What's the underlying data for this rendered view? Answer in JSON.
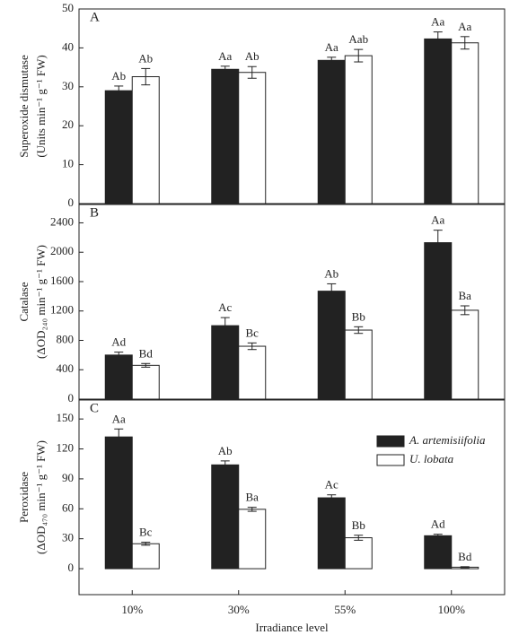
{
  "chart_data": [
    {
      "type": "bar",
      "panel": "A",
      "ylabel": [
        "Superoxide dismutase",
        "(Units min⁻¹ g⁻¹ FW)"
      ],
      "ylim": [
        0,
        50
      ],
      "yticks": [
        0,
        10,
        20,
        30,
        40,
        50
      ],
      "series": [
        {
          "color": "#222222",
          "values": [
            29,
            34.5,
            36.8,
            42.3
          ],
          "errors": [
            1.2,
            0.8,
            0.8,
            1.8
          ],
          "letters": [
            "Ab",
            "Aa",
            "Aa",
            "Aa"
          ]
        },
        {
          "color": "#ffffff",
          "values": [
            32.6,
            33.7,
            38,
            41.3
          ],
          "errors": [
            2.1,
            1.5,
            1.6,
            1.6
          ],
          "letters": [
            "Ab",
            "Ab",
            "Aab",
            "Aa"
          ]
        }
      ]
    },
    {
      "type": "bar",
      "panel": "B",
      "ylabel": [
        "Catalase",
        "(ΔOD₂₄₀ min⁻¹ g⁻¹ FW)"
      ],
      "ylim": [
        0,
        2650
      ],
      "yticks": [
        0,
        400,
        800,
        1200,
        1600,
        2000,
        2400
      ],
      "series": [
        {
          "color": "#222222",
          "values": [
            600,
            1000,
            1470,
            2130
          ],
          "errors": [
            40,
            110,
            100,
            170
          ],
          "letters": [
            "Ad",
            "Ac",
            "Ab",
            "Aa"
          ]
        },
        {
          "color": "#ffffff",
          "values": [
            460,
            720,
            940,
            1210
          ],
          "errors": [
            25,
            45,
            45,
            60
          ],
          "letters": [
            "Bd",
            "Bc",
            "Bb",
            "Ba"
          ]
        }
      ]
    },
    {
      "type": "bar",
      "panel": "C",
      "ylabel": [
        "Peroxidase",
        "(ΔOD₄₇₀ min⁻¹ g⁻¹ FW)"
      ],
      "xlabel": "Irradiance level",
      "categories": [
        "10%",
        "30%",
        "55%",
        "100%"
      ],
      "ylim": [
        -26,
        169
      ],
      "yticks": [
        0,
        30,
        60,
        90,
        120,
        150
      ],
      "legend": "upper right",
      "series": [
        {
          "name": "A. artemisiifolia",
          "color": "#222222",
          "values": [
            132,
            104,
            71,
            33
          ],
          "errors": [
            8,
            4,
            3,
            1.5
          ],
          "letters": [
            "Aa",
            "Ab",
            "Ac",
            "Ad"
          ]
        },
        {
          "name": "U. lobata",
          "color": "#ffffff",
          "values": [
            25,
            59.5,
            31,
            1.5
          ],
          "errors": [
            1.5,
            2,
            2.5,
            0.5
          ],
          "letters": [
            "Bc",
            "Ba",
            "Bb",
            "Bd"
          ]
        }
      ]
    }
  ]
}
